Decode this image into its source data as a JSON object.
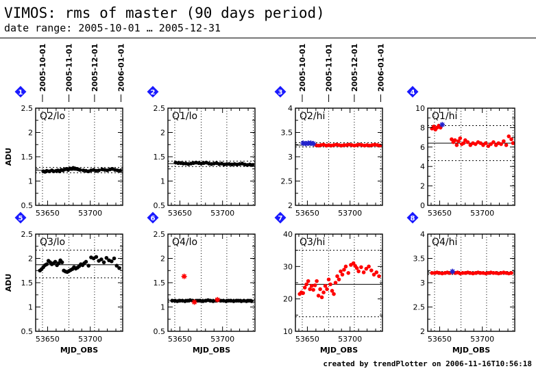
{
  "title": "VIMOS: rms of master (90 days period)",
  "subtitle": "date range: 2005-10-01 … 2005-12-31",
  "credit": "created by trendPlotter on 2006-11-16T10:56:18",
  "ylabel": "ADU",
  "xlabel": "MJD_OBS",
  "date_ticks": [
    {
      "label": "2005-10-01",
      "mjd": 53644
    },
    {
      "label": "2005-11-01",
      "mjd": 53675
    },
    {
      "label": "2005-12-01",
      "mjd": 53705
    },
    {
      "label": "2006-01-01",
      "mjd": 53736
    }
  ],
  "colors": {
    "black_series": "#000000",
    "red_series": "#ff0000",
    "outlier_blue": "#2222cc",
    "badge": "#1a1aff"
  },
  "chart_data": [
    {
      "type": "scatter",
      "badge": "1",
      "label": "Q2/lo",
      "xlim": [
        53636,
        53738
      ],
      "ylim": [
        0.5,
        2.5
      ],
      "yticks": [
        0.5,
        1,
        1.5,
        2,
        2.5
      ],
      "ytick_labels": [
        "0.5",
        "1",
        "1.5",
        "2",
        "2.5"
      ],
      "xticks": [
        53650,
        53700
      ],
      "color": "black",
      "median": 1.22,
      "thresholds": [
        1.17,
        1.28
      ],
      "x": [
        53645,
        53647,
        53649,
        53652,
        53655,
        53657,
        53660,
        53662,
        53664,
        53666,
        53668,
        53670,
        53672,
        53674,
        53676,
        53678,
        53680,
        53682,
        53684,
        53686,
        53688,
        53692,
        53695,
        53698,
        53701,
        53704,
        53707,
        53710,
        53714,
        53717,
        53720,
        53723,
        53726,
        53729,
        53732,
        53735
      ],
      "y": [
        1.2,
        1.19,
        1.21,
        1.2,
        1.22,
        1.2,
        1.21,
        1.22,
        1.2,
        1.23,
        1.22,
        1.24,
        1.25,
        1.23,
        1.26,
        1.25,
        1.27,
        1.26,
        1.25,
        1.24,
        1.23,
        1.22,
        1.21,
        1.2,
        1.22,
        1.23,
        1.21,
        1.22,
        1.24,
        1.23,
        1.22,
        1.24,
        1.25,
        1.23,
        1.22,
        1.21
      ]
    },
    {
      "type": "scatter",
      "badge": "2",
      "label": "Q1/lo",
      "xlim": [
        53636,
        53738
      ],
      "ylim": [
        0.5,
        2.5
      ],
      "yticks": [
        0.5,
        1,
        1.5,
        2,
        2.5
      ],
      "ytick_labels": [
        "0.5",
        "1",
        "1.5",
        "2",
        "2.5"
      ],
      "xticks": [
        53650,
        53700
      ],
      "color": "black",
      "median": 1.36,
      "thresholds": [
        1.3,
        1.41
      ],
      "x": [
        53645,
        53648,
        53651,
        53654,
        53657,
        53660,
        53663,
        53666,
        53669,
        53672,
        53675,
        53678,
        53681,
        53684,
        53687,
        53690,
        53693,
        53696,
        53699,
        53702,
        53705,
        53708,
        53711,
        53714,
        53717,
        53720,
        53723,
        53726,
        53729,
        53732,
        53735
      ],
      "y": [
        1.38,
        1.37,
        1.37,
        1.36,
        1.36,
        1.35,
        1.36,
        1.37,
        1.38,
        1.37,
        1.36,
        1.37,
        1.38,
        1.36,
        1.35,
        1.36,
        1.37,
        1.35,
        1.36,
        1.34,
        1.35,
        1.35,
        1.34,
        1.35,
        1.34,
        1.35,
        1.36,
        1.34,
        1.33,
        1.34,
        1.33
      ]
    },
    {
      "type": "scatter",
      "badge": "3",
      "label": "Q2/hi",
      "xlim": [
        53636,
        53738
      ],
      "ylim": [
        2,
        4
      ],
      "yticks": [
        2,
        2.5,
        3,
        3.5,
        4
      ],
      "ytick_labels": [
        "2",
        "2.5",
        "3",
        "3.5",
        "4"
      ],
      "xticks": [
        53650,
        53700
      ],
      "color": "red",
      "median": 3.24,
      "thresholds": [
        3.2,
        3.29
      ],
      "x": [
        53660,
        53663,
        53666,
        53669,
        53672,
        53675,
        53678,
        53681,
        53684,
        53687,
        53690,
        53693,
        53696,
        53699,
        53702,
        53705,
        53708,
        53711,
        53714,
        53717,
        53720,
        53723,
        53726,
        53729,
        53732,
        53735
      ],
      "y": [
        3.24,
        3.23,
        3.24,
        3.25,
        3.23,
        3.24,
        3.23,
        3.24,
        3.25,
        3.24,
        3.23,
        3.24,
        3.24,
        3.25,
        3.24,
        3.23,
        3.24,
        3.25,
        3.24,
        3.23,
        3.24,
        3.23,
        3.24,
        3.25,
        3.24,
        3.23
      ],
      "outliers_x": [
        53645,
        53648,
        53651,
        53654,
        53657
      ],
      "outliers_y": [
        3.28,
        3.27,
        3.28,
        3.28,
        3.27
      ]
    },
    {
      "type": "scatter",
      "badge": "4",
      "label": "Q1/hi",
      "xlim": [
        53636,
        53738
      ],
      "ylim": [
        0,
        10
      ],
      "yticks": [
        0,
        2,
        4,
        6,
        8,
        10
      ],
      "ytick_labels": [
        "0",
        "2",
        "4",
        "6",
        "8",
        "10"
      ],
      "xticks": [
        53650,
        53700
      ],
      "color": "red",
      "median": 6.4,
      "thresholds": [
        4.6,
        8.2
      ],
      "x": [
        53641,
        53643,
        53645,
        53647,
        53649,
        53651,
        53664,
        53666,
        53668,
        53670,
        53672,
        53674,
        53676,
        53678,
        53680,
        53683,
        53686,
        53689,
        53692,
        53695,
        53698,
        53701,
        53704,
        53707,
        53710,
        53713,
        53716,
        53719,
        53722,
        53725,
        53728,
        53731,
        53734,
        53736
      ],
      "y": [
        7.9,
        8.1,
        7.8,
        8.0,
        8.2,
        8.0,
        6.8,
        6.5,
        6.7,
        6.2,
        6.6,
        6.9,
        6.3,
        6.4,
        6.7,
        6.5,
        6.2,
        6.4,
        6.3,
        6.5,
        6.4,
        6.2,
        6.4,
        6.1,
        6.3,
        6.5,
        6.2,
        6.4,
        6.3,
        6.6,
        6.2,
        7.1,
        6.8,
        6.4
      ],
      "outliers_x": [
        53653
      ],
      "outliers_y": [
        8.3
      ]
    },
    {
      "type": "scatter",
      "badge": "5",
      "label": "Q3/lo",
      "xlim": [
        53636,
        53738
      ],
      "ylim": [
        0.5,
        2.5
      ],
      "yticks": [
        0.5,
        1,
        1.5,
        2,
        2.5
      ],
      "ytick_labels": [
        "0.5",
        "1",
        "1.5",
        "2",
        "2.5"
      ],
      "xticks": [
        53650,
        53700
      ],
      "color": "black",
      "median": 1.87,
      "thresholds": [
        1.6,
        2.17
      ],
      "x": [
        53641,
        53643,
        53645,
        53647,
        53649,
        53651,
        53653,
        53655,
        53657,
        53659,
        53661,
        53663,
        53665,
        53667,
        53669,
        53671,
        53673,
        53675,
        53677,
        53679,
        53681,
        53683,
        53685,
        53687,
        53689,
        53691,
        53693,
        53695,
        53698,
        53701,
        53704,
        53707,
        53710,
        53713,
        53716,
        53719,
        53722,
        53725,
        53728,
        53731,
        53734
      ],
      "y": [
        1.75,
        1.78,
        1.82,
        1.86,
        1.88,
        1.95,
        1.92,
        1.88,
        1.9,
        1.93,
        1.86,
        1.9,
        1.96,
        1.92,
        1.75,
        1.73,
        1.72,
        1.74,
        1.76,
        1.78,
        1.82,
        1.79,
        1.81,
        1.84,
        1.88,
        1.86,
        1.9,
        1.93,
        1.85,
        2.02,
        2.0,
        2.03,
        1.95,
        1.98,
        1.92,
        2.01,
        1.96,
        1.94,
        2.0,
        1.85,
        1.8
      ]
    },
    {
      "type": "scatter",
      "badge": "6",
      "label": "Q4/lo",
      "xlim": [
        53636,
        53738
      ],
      "ylim": [
        0.5,
        2.5
      ],
      "yticks": [
        0.5,
        1,
        1.5,
        2,
        2.5
      ],
      "ytick_labels": [
        "0.5",
        "1",
        "1.5",
        "2",
        "2.5"
      ],
      "xticks": [
        53650,
        53700
      ],
      "color": "black",
      "median": 1.13,
      "thresholds": [
        1.1,
        1.16
      ],
      "x": [
        53641,
        53644,
        53647,
        53650,
        53653,
        53656,
        53659,
        53662,
        53665,
        53668,
        53671,
        53674,
        53677,
        53680,
        53683,
        53686,
        53689,
        53692,
        53695,
        53698,
        53701,
        53704,
        53707,
        53710,
        53713,
        53716,
        53719,
        53722,
        53725,
        53728,
        53731,
        53734
      ],
      "y": [
        1.13,
        1.13,
        1.12,
        1.13,
        1.13,
        1.12,
        1.13,
        1.14,
        1.13,
        1.12,
        1.13,
        1.13,
        1.12,
        1.13,
        1.14,
        1.13,
        1.12,
        1.13,
        1.14,
        1.13,
        1.13,
        1.12,
        1.13,
        1.13,
        1.12,
        1.13,
        1.13,
        1.12,
        1.13,
        1.12,
        1.13,
        1.12
      ],
      "outliers_x": [
        53655,
        53667,
        53694
      ],
      "outliers_y": [
        1.63,
        1.1,
        1.15
      ]
    },
    {
      "type": "scatter",
      "badge": "7",
      "label": "Q3/hi",
      "xlim": [
        53636,
        53738
      ],
      "ylim": [
        10,
        40
      ],
      "yticks": [
        10,
        20,
        30,
        40
      ],
      "ytick_labels": [
        "10",
        "20",
        "30",
        "40"
      ],
      "xticks": [
        53650,
        53700
      ],
      "color": "red",
      "median": 24.5,
      "thresholds": [
        14.5,
        35
      ],
      "x": [
        53641,
        53643,
        53645,
        53647,
        53649,
        53651,
        53653,
        53655,
        53657,
        53659,
        53661,
        53663,
        53665,
        53667,
        53669,
        53671,
        53673,
        53675,
        53677,
        53679,
        53681,
        53683,
        53685,
        53687,
        53689,
        53691,
        53693,
        53695,
        53698,
        53701,
        53704,
        53706,
        53708,
        53710,
        53713,
        53716,
        53719,
        53722,
        53725,
        53728,
        53731,
        53734
      ],
      "y": [
        21.5,
        22,
        21.8,
        23.5,
        24.5,
        25.5,
        23,
        24,
        22.8,
        24.2,
        25.5,
        21,
        23,
        20.5,
        22,
        24,
        23,
        26,
        24.5,
        22.5,
        21.5,
        25,
        27,
        26,
        28.5,
        27.5,
        29,
        30,
        28,
        30.5,
        31,
        30.2,
        29.5,
        28.5,
        29.8,
        28.2,
        29.3,
        30,
        28.8,
        27.5,
        28.2,
        27
      ]
    },
    {
      "type": "scatter",
      "badge": "8",
      "label": "Q4/hi",
      "xlim": [
        53636,
        53738
      ],
      "ylim": [
        2,
        4
      ],
      "yticks": [
        2,
        2.5,
        3,
        3.5,
        4
      ],
      "ytick_labels": [
        "2",
        "2.5",
        "3",
        "3.5",
        "4"
      ],
      "xticks": [
        53650,
        53700
      ],
      "color": "red",
      "median": 3.2,
      "thresholds": [
        3.17,
        3.23
      ],
      "x": [
        53641,
        53644,
        53647,
        53650,
        53653,
        53656,
        53659,
        53662,
        53668,
        53671,
        53674,
        53677,
        53680,
        53683,
        53686,
        53689,
        53692,
        53695,
        53698,
        53701,
        53704,
        53707,
        53710,
        53713,
        53716,
        53719,
        53722,
        53725,
        53728,
        53731,
        53734
      ],
      "y": [
        3.2,
        3.2,
        3.21,
        3.2,
        3.19,
        3.2,
        3.21,
        3.2,
        3.2,
        3.21,
        3.19,
        3.2,
        3.2,
        3.21,
        3.2,
        3.19,
        3.2,
        3.21,
        3.2,
        3.2,
        3.19,
        3.2,
        3.21,
        3.2,
        3.2,
        3.19,
        3.2,
        3.21,
        3.2,
        3.19,
        3.2
      ],
      "outliers_x": [
        53665
      ],
      "outliers_y": [
        3.23
      ]
    }
  ]
}
